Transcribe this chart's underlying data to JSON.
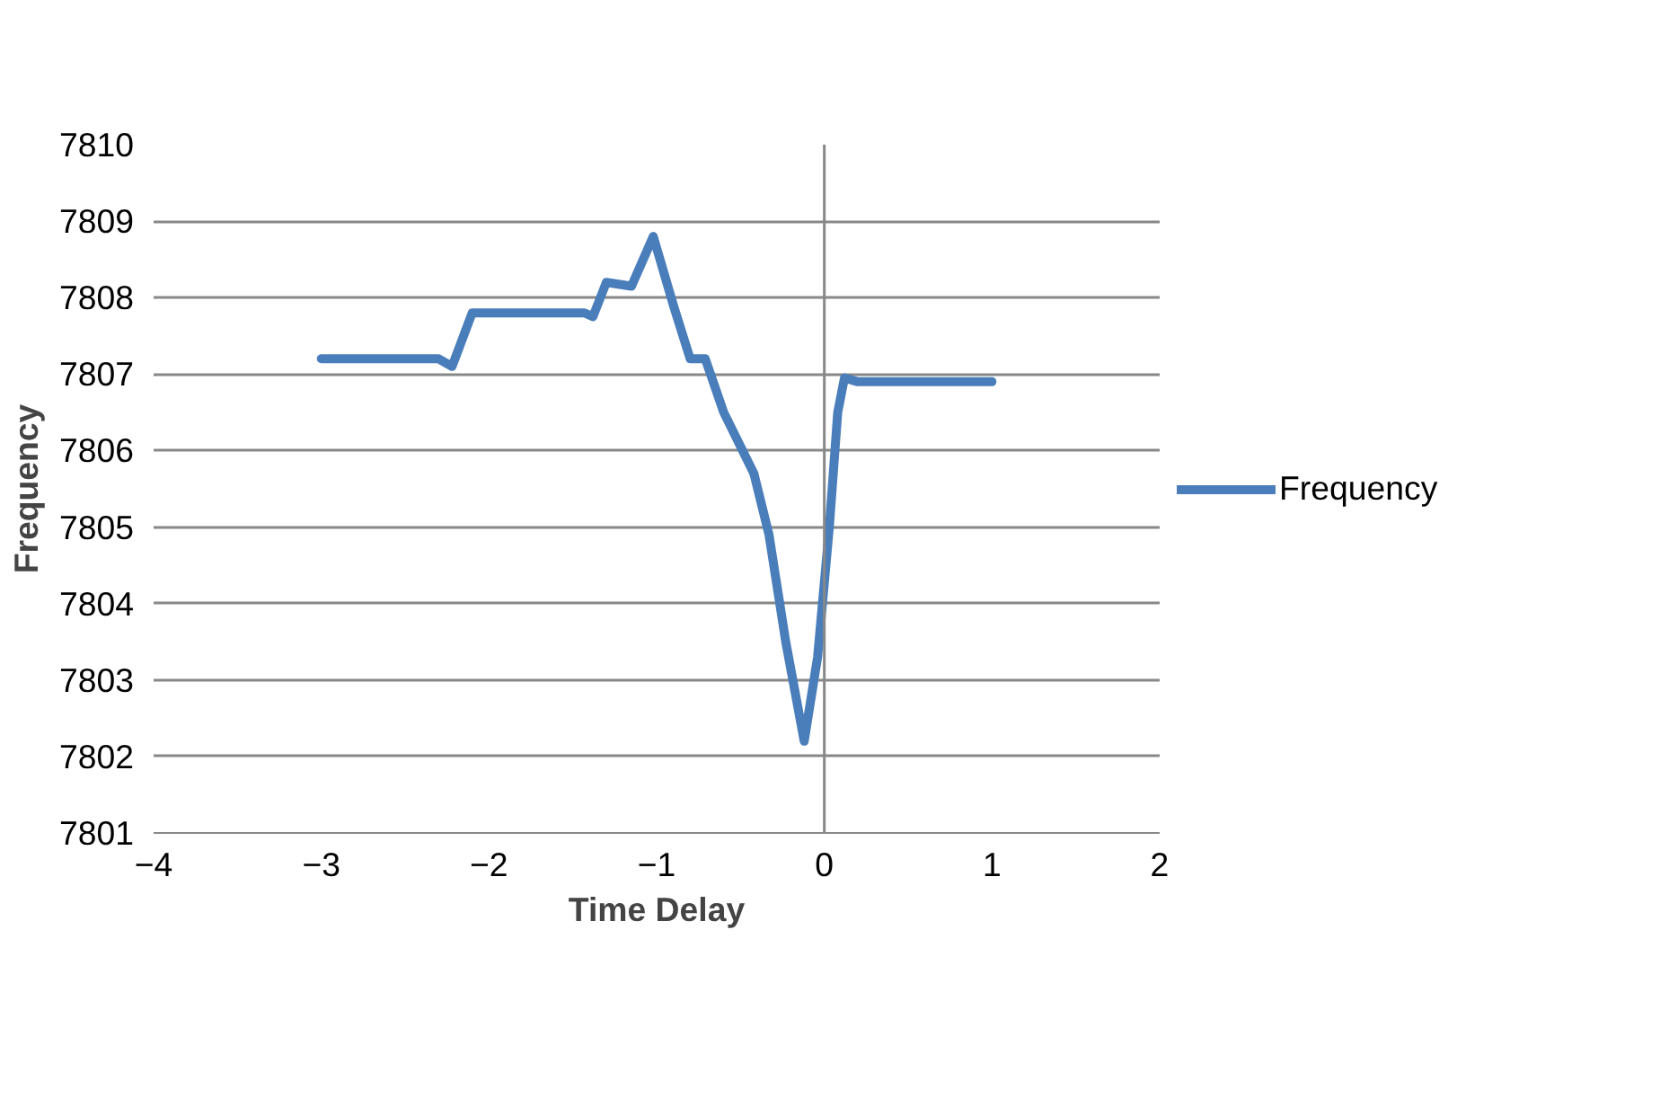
{
  "chart_data": {
    "type": "line",
    "xlabel": "Time Delay",
    "ylabel": "Frequency",
    "xlim": [
      -4,
      2
    ],
    "xticks": [
      -4,
      -3,
      -2,
      -1,
      0,
      1,
      2
    ],
    "ylim": [
      7801,
      7810
    ],
    "yticks": [
      7801,
      7802,
      7803,
      7804,
      7805,
      7806,
      7807,
      7808,
      7809,
      7810
    ],
    "grid": "y",
    "ref_lines": [
      {
        "axis": "x",
        "value": 0,
        "color": "#888888"
      }
    ],
    "legend": "right",
    "line_style": "solid",
    "marker": "none",
    "series": [
      {
        "name": "Frequency",
        "color": "#4a7ebb",
        "x": [
          -3.0,
          -2.3,
          -2.22,
          -2.1,
          -1.43,
          -1.38,
          -1.3,
          -1.15,
          -1.02,
          -0.9,
          -0.8,
          -0.71,
          -0.6,
          -0.42,
          -0.33,
          -0.23,
          -0.12,
          -0.04,
          0.03,
          0.08,
          0.12,
          0.2,
          1.0
        ],
        "values": [
          7807.2,
          7807.2,
          7807.1,
          7807.8,
          7807.8,
          7807.75,
          7808.2,
          7808.15,
          7808.8,
          7807.9,
          7807.2,
          7807.2,
          7806.5,
          7805.7,
          7804.9,
          7803.5,
          7802.2,
          7803.3,
          7805.0,
          7806.5,
          7806.95,
          7806.9,
          7806.9
        ]
      }
    ]
  }
}
